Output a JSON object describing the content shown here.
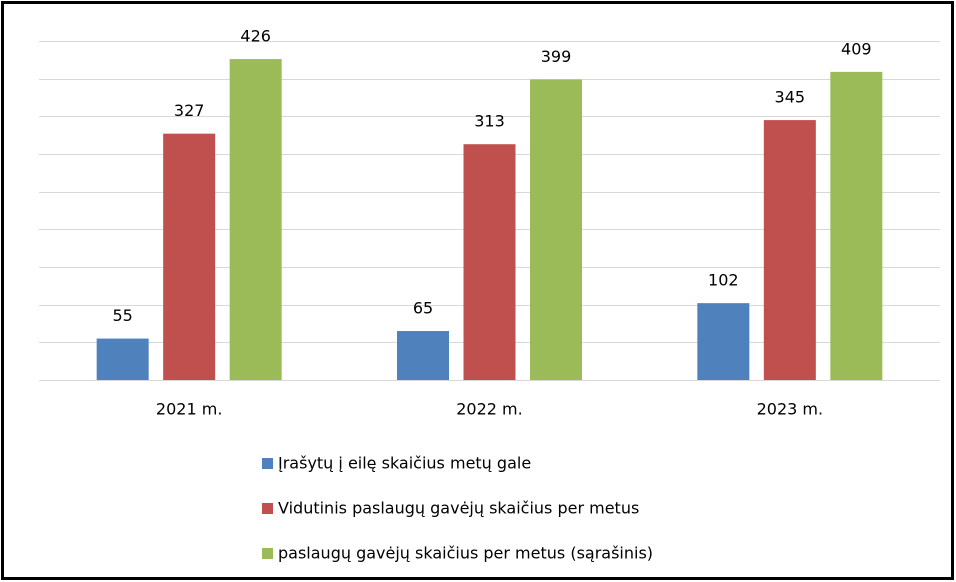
{
  "chart_data": {
    "type": "bar",
    "categories": [
      "2021 m.",
      "2022 m.",
      "2023 m."
    ],
    "series": [
      {
        "name": "Įrašytų į eilę skaičius metų gale",
        "color": "#4f81bd",
        "values": [
          55,
          65,
          102
        ]
      },
      {
        "name": "Vidutinis paslaugų gavėjų skaičius per metus",
        "color": "#c0504d",
        "values": [
          327,
          313,
          345
        ]
      },
      {
        "name": "paslaugų gavėjų skaičius per metus (sąrašinis)",
        "color": "#9bbb59",
        "values": [
          426,
          399,
          409
        ]
      }
    ],
    "ylim": [
      0,
      450
    ],
    "yticks": [
      0,
      50,
      100,
      150,
      200,
      250,
      300,
      350,
      400,
      450
    ],
    "grid": true,
    "legend": "bottom"
  }
}
